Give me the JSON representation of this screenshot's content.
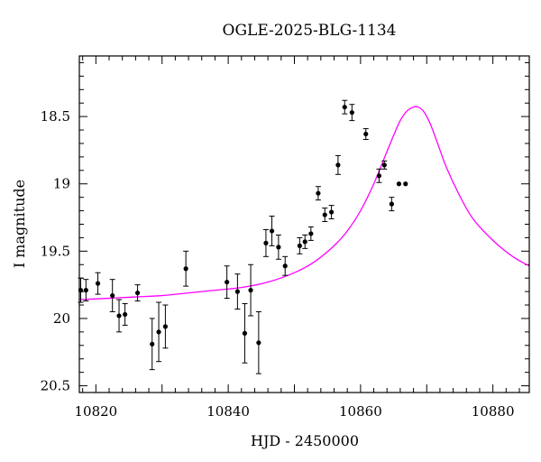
{
  "chart_data": {
    "type": "scatter",
    "title": "OGLE-2025-BLG-1134",
    "xlabel": "HJD - 2450000",
    "ylabel": "I magnitude",
    "xlim": [
      10817.5,
      10885.5
    ],
    "ylim": [
      20.55,
      18.05
    ],
    "y_inverted": true,
    "grid": false,
    "legend": "none",
    "x_ticks": [
      10820,
      10840,
      10860,
      10880
    ],
    "y_ticks": [
      18.5,
      19,
      19.5,
      20,
      20.5
    ],
    "y_tick_labels": [
      "18.5",
      "19",
      "19.5",
      "20",
      "20.5"
    ],
    "colors": {
      "points": "#000000",
      "model": "#ff00ff",
      "axes": "#000000"
    },
    "series": [
      {
        "kind": "points-with-errorbars",
        "x": [
          10817.7,
          10818.5,
          10820.3,
          10822.5,
          10823.5,
          10824.4,
          10826.3,
          10828.5,
          10829.5,
          10830.5,
          10833.6,
          10839.8,
          10841.4,
          10842.5,
          10843.4,
          10844.6,
          10845.7,
          10846.6,
          10847.6,
          10848.6,
          10850.8,
          10851.6,
          10852.5,
          10853.6,
          10854.6,
          10855.6,
          10856.6,
          10857.6,
          10858.7,
          10860.8,
          10862.8,
          10863.6,
          10864.7,
          10865.8,
          10866.8
        ],
        "y": [
          19.79,
          19.79,
          19.74,
          19.83,
          19.98,
          19.97,
          19.81,
          20.19,
          20.1,
          20.06,
          19.63,
          19.73,
          19.8,
          20.11,
          19.79,
          20.18,
          19.44,
          19.35,
          19.47,
          19.61,
          19.46,
          19.43,
          19.37,
          19.07,
          19.23,
          19.21,
          18.86,
          18.43,
          18.47,
          18.63,
          18.94,
          18.86,
          19.15,
          19.0,
          19.0
        ],
        "yerr": [
          0.09,
          0.08,
          0.08,
          0.12,
          0.12,
          0.08,
          0.06,
          0.19,
          0.22,
          0.16,
          0.13,
          0.12,
          0.13,
          0.22,
          0.19,
          0.23,
          0.1,
          0.11,
          0.09,
          0.07,
          0.06,
          0.05,
          0.05,
          0.05,
          0.05,
          0.05,
          0.07,
          0.05,
          0.06,
          0.04,
          0.05,
          0.03,
          0.05,
          0.0,
          0.0
        ]
      },
      {
        "kind": "model-curve",
        "x": [
          10817.5,
          10822,
          10826,
          10830,
          10834,
          10838,
          10842,
          10846,
          10850,
          10853,
          10856,
          10858,
          10860,
          10862,
          10863.5,
          10865,
          10866,
          10867,
          10868,
          10868.7,
          10869.5,
          10870.5,
          10871.5,
          10873,
          10875,
          10877,
          10880,
          10883,
          10885.5
        ],
        "y": [
          19.86,
          19.85,
          19.84,
          19.83,
          19.81,
          19.79,
          19.77,
          19.73,
          19.66,
          19.58,
          19.46,
          19.35,
          19.2,
          19.0,
          18.82,
          18.64,
          18.53,
          18.46,
          18.43,
          18.43,
          18.46,
          18.55,
          18.68,
          18.88,
          19.09,
          19.26,
          19.42,
          19.54,
          19.61
        ]
      }
    ]
  }
}
